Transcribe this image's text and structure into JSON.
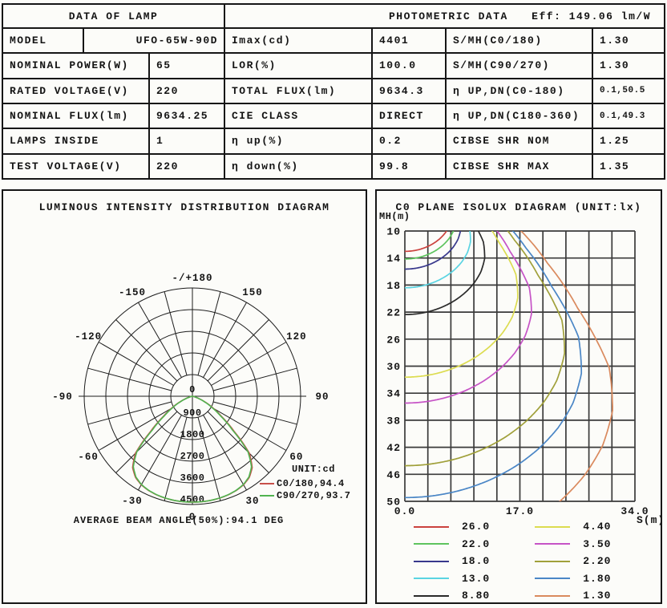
{
  "table": {
    "header_left": "DATA OF LAMP",
    "header_right": "PHOTOMETRIC DATA",
    "header_eff": "Eff: 149.06 lm/W",
    "left_rows": [
      {
        "label": "MODEL",
        "value": "UFO-65W-90D"
      },
      {
        "label": "NOMINAL POWER(W)",
        "value": "65"
      },
      {
        "label": "RATED VOLTAGE(V)",
        "value": "220"
      },
      {
        "label": "NOMINAL FLUX(lm)",
        "value": "9634.25"
      },
      {
        "label": "LAMPS INSIDE",
        "value": "1"
      },
      {
        "label": "TEST VOLTAGE(V)",
        "value": "220"
      }
    ],
    "mid_rows": [
      {
        "label": "Imax(cd)",
        "value": "4401"
      },
      {
        "label": "LOR(%)",
        "value": "100.0"
      },
      {
        "label": "TOTAL FLUX(lm)",
        "value": "9634.3"
      },
      {
        "label": "CIE CLASS",
        "value": "DIRECT"
      },
      {
        "label": "η up(%)",
        "value": "0.2"
      },
      {
        "label": "η down(%)",
        "value": "99.8"
      }
    ],
    "right_rows": [
      {
        "label": "S/MH(C0/180)",
        "value": "1.30",
        "small": false
      },
      {
        "label": "S/MH(C90/270)",
        "value": "1.30",
        "small": false
      },
      {
        "label": "η UP,DN(C0-180)",
        "value": "0.1,50.5",
        "small": true
      },
      {
        "label": "η UP,DN(C180-360)",
        "value": "0.1,49.3",
        "small": true
      },
      {
        "label": "CIBSE SHR NOM",
        "value": "1.25",
        "small": false
      },
      {
        "label": "CIBSE SHR MAX",
        "value": "1.35",
        "small": false
      }
    ]
  },
  "chart_data": [
    {
      "id": "polar",
      "type": "line",
      "polar": true,
      "title": "LUMINOUS INTENSITY DISTRIBUTION DIAGRAM",
      "unit_label": "UNIT:cd",
      "caption": "AVERAGE BEAM ANGLE(50%):94.1 DEG",
      "radial_ticks": [
        0,
        900,
        1800,
        2700,
        3600,
        4500
      ],
      "radial_max": 4500,
      "angle_step_deg": 15,
      "angle_labels": [
        {
          "text": "-/+180",
          "deg": 180
        },
        {
          "text": "150",
          "deg": 150
        },
        {
          "text": "120",
          "deg": 120
        },
        {
          "text": "90",
          "deg": 90
        },
        {
          "text": "60",
          "deg": 60
        },
        {
          "text": "30",
          "deg": 30
        },
        {
          "text": "0",
          "deg": 0
        },
        {
          "text": "-30",
          "deg": -30
        },
        {
          "text": "-60",
          "deg": -60
        },
        {
          "text": "-90",
          "deg": -90
        },
        {
          "text": "-120",
          "deg": -120
        },
        {
          "text": "-150",
          "deg": -150
        }
      ],
      "series": [
        {
          "name": "C0/180,94.4",
          "color": "#c8504a",
          "angles_deg": [
            0,
            5,
            10,
            15,
            20,
            25,
            30,
            35,
            40,
            45,
            50,
            55,
            60,
            65,
            70,
            75,
            80,
            85,
            90
          ],
          "intensity_cd": [
            4401,
            4400,
            4394,
            4382,
            4360,
            4320,
            4250,
            4120,
            3870,
            3350,
            2250,
            1500,
            1000,
            610,
            295,
            105,
            28,
            7,
            0
          ]
        },
        {
          "name": "C90/270,93.7",
          "color": "#50b450",
          "angles_deg": [
            0,
            5,
            10,
            15,
            20,
            25,
            30,
            35,
            40,
            45,
            50,
            55,
            60,
            65,
            70,
            75,
            80,
            85,
            90
          ],
          "intensity_cd": [
            4401,
            4399,
            4392,
            4378,
            4354,
            4310,
            4235,
            4095,
            3820,
            3270,
            2160,
            1430,
            950,
            575,
            275,
            98,
            25,
            6,
            0
          ]
        }
      ]
    },
    {
      "id": "isolux",
      "type": "line",
      "title": "C0 PLANE ISOLUX DIAGRAM (UNIT:lx)",
      "xlabel": "S(m)",
      "ylabel": "MH(m)",
      "xlim": [
        0,
        34
      ],
      "ylim": [
        10,
        50
      ],
      "x_ticks": [
        "0.0",
        "17.0",
        "34.0"
      ],
      "y_ticks": [
        10,
        14,
        18,
        22,
        26,
        30,
        34,
        38,
        42,
        46,
        50
      ],
      "grid": true,
      "legend_position": "bottom",
      "levels_lx": [
        {
          "value": "26.0",
          "color": "#cb423e"
        },
        {
          "value": "22.0",
          "color": "#5ec45e"
        },
        {
          "value": "18.0",
          "color": "#38388c"
        },
        {
          "value": "13.0",
          "color": "#5ad4e2"
        },
        {
          "value": "8.80",
          "color": "#2a2a2a"
        },
        {
          "value": "4.40",
          "color": "#dcdc50"
        },
        {
          "value": "3.50",
          "color": "#c653c6"
        },
        {
          "value": "2.20",
          "color": "#a0a03a"
        },
        {
          "value": "1.80",
          "color": "#4a86c6"
        },
        {
          "value": "1.30",
          "color": "#da8a5e"
        }
      ]
    }
  ]
}
